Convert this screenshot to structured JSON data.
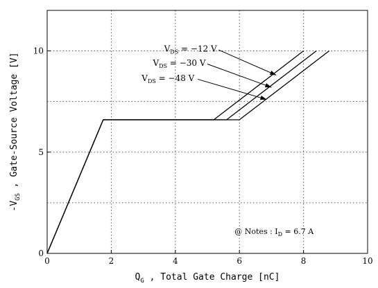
{
  "chart_data": {
    "type": "line",
    "xlabel": {
      "main": "Q",
      "sub": "G",
      "rest": " , Total Gate Charge  [nC]"
    },
    "ylabel": {
      "main": "-V",
      "sub": "GS",
      "rest": " , Gate-Source Voltage  [V]"
    },
    "xlim": [
      0,
      10
    ],
    "ylim": [
      0,
      12
    ],
    "x_ticks": [
      0,
      2,
      4,
      6,
      8,
      10
    ],
    "y_ticks": [
      0,
      5,
      10
    ],
    "x_grid": [
      2,
      4,
      6,
      8
    ],
    "y_grid": [
      2.5,
      5,
      7.5,
      10
    ],
    "grid": "dotted",
    "series": [
      {
        "name": "V_DS = -12 V",
        "points": [
          [
            0,
            0
          ],
          [
            1.75,
            6.6
          ],
          [
            5.2,
            6.6
          ],
          [
            8.0,
            10.0
          ]
        ]
      },
      {
        "name": "V_DS = -30 V",
        "points": [
          [
            0,
            0
          ],
          [
            1.75,
            6.6
          ],
          [
            5.6,
            6.6
          ],
          [
            8.4,
            10.0
          ]
        ]
      },
      {
        "name": "V_DS = -48 V",
        "points": [
          [
            0,
            0
          ],
          [
            1.75,
            6.6
          ],
          [
            6.0,
            6.6
          ],
          [
            8.8,
            10.0
          ]
        ]
      }
    ],
    "annotations": [
      {
        "main": "V",
        "sub": "DS",
        "rest": " = −12 V",
        "label_at": [
          3.65,
          10.1
        ],
        "arrow_from": [
          5.35,
          10.05
        ],
        "arrow_to": [
          7.15,
          8.8
        ]
      },
      {
        "main": "V",
        "sub": "DS",
        "rest": " = −30 V",
        "label_at": [
          3.3,
          9.4
        ],
        "arrow_from": [
          5.0,
          9.35
        ],
        "arrow_to": [
          7.0,
          8.2
        ]
      },
      {
        "main": "V",
        "sub": "DS",
        "rest": " = −48 V",
        "label_at": [
          2.95,
          8.65
        ],
        "arrow_from": [
          4.7,
          8.6
        ],
        "arrow_to": [
          6.85,
          7.6
        ]
      }
    ],
    "note": {
      "prefix": "@ Notes : I",
      "sub": "D",
      "rest": " = 6.7 A",
      "at": [
        5.85,
        1.1
      ]
    }
  }
}
